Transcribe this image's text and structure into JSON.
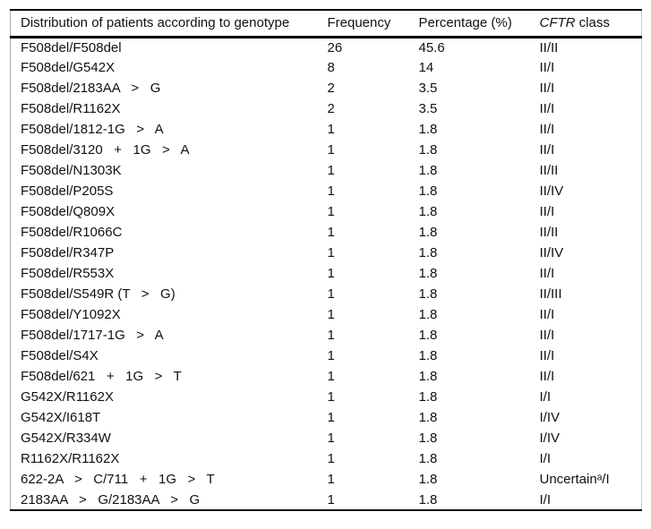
{
  "colors": {
    "background": "#ffffff",
    "rule": "#000000",
    "side_rule": "#a8a8a8",
    "text": "#111111"
  },
  "table": {
    "columns": [
      {
        "label": "Distribution of patients according to genotype"
      },
      {
        "label": "Frequency"
      },
      {
        "label": "Percentage (%)"
      },
      {
        "label_italic": "CFTR",
        "label_rest": " class"
      }
    ],
    "rows": [
      {
        "genotype": "F508del/F508del",
        "frequency": "26",
        "percentage": "45.6",
        "cftr_class": "II/II"
      },
      {
        "genotype": "F508del/G542X",
        "frequency": "8",
        "percentage": "14",
        "cftr_class": "II/I"
      },
      {
        "genotype": "F508del/2183AA   >   G",
        "frequency": "2",
        "percentage": "3.5",
        "cftr_class": "II/I"
      },
      {
        "genotype": "F508del/R1162X",
        "frequency": "2",
        "percentage": "3.5",
        "cftr_class": "II/I"
      },
      {
        "genotype": "F508del/1812-1G   >   A",
        "frequency": "1",
        "percentage": "1.8",
        "cftr_class": "II/I"
      },
      {
        "genotype": "F508del/3120   +   1G   >   A",
        "frequency": "1",
        "percentage": "1.8",
        "cftr_class": "II/I"
      },
      {
        "genotype": "F508del/N1303K",
        "frequency": "1",
        "percentage": "1.8",
        "cftr_class": "II/II"
      },
      {
        "genotype": "F508del/P205S",
        "frequency": "1",
        "percentage": "1.8",
        "cftr_class": "II/IV"
      },
      {
        "genotype": "F508del/Q809X",
        "frequency": "1",
        "percentage": "1.8",
        "cftr_class": "II/I"
      },
      {
        "genotype": "F508del/R1066C",
        "frequency": "1",
        "percentage": "1.8",
        "cftr_class": "II/II"
      },
      {
        "genotype": "F508del/R347P",
        "frequency": "1",
        "percentage": "1.8",
        "cftr_class": "II/IV"
      },
      {
        "genotype": "F508del/R553X",
        "frequency": "1",
        "percentage": "1.8",
        "cftr_class": "II/I"
      },
      {
        "genotype": "F508del/S549R (T   >   G)",
        "frequency": "1",
        "percentage": "1.8",
        "cftr_class": "II/III"
      },
      {
        "genotype": "F508del/Y1092X",
        "frequency": "1",
        "percentage": "1.8",
        "cftr_class": "II/I"
      },
      {
        "genotype": "F508del/1717-1G   >   A",
        "frequency": "1",
        "percentage": "1.8",
        "cftr_class": "II/I"
      },
      {
        "genotype": "F508del/S4X",
        "frequency": "1",
        "percentage": "1.8",
        "cftr_class": "II/I"
      },
      {
        "genotype": "F508del/621   +   1G   >   T",
        "frequency": "1",
        "percentage": "1.8",
        "cftr_class": "II/I"
      },
      {
        "genotype": "G542X/R1162X",
        "frequency": "1",
        "percentage": "1.8",
        "cftr_class": "I/I"
      },
      {
        "genotype": "G542X/I618T",
        "frequency": "1",
        "percentage": "1.8",
        "cftr_class": "I/IV"
      },
      {
        "genotype": "G542X/R334W",
        "frequency": "1",
        "percentage": "1.8",
        "cftr_class": "I/IV"
      },
      {
        "genotype": "R1162X/R1162X",
        "frequency": "1",
        "percentage": "1.8",
        "cftr_class": "I/I"
      },
      {
        "genotype": "622-2A   >   C/711   +   1G   >   T",
        "frequency": "1",
        "percentage": "1.8",
        "cftr_class": "Uncertainᵃ/I"
      },
      {
        "genotype": "2183AA   >   G/2183AA   >   G",
        "frequency": "1",
        "percentage": "1.8",
        "cftr_class": "I/I"
      }
    ]
  }
}
